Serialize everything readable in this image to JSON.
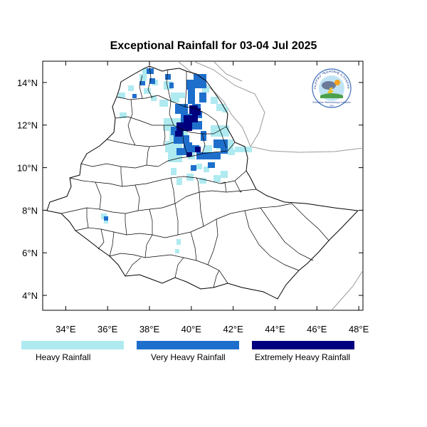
{
  "title": "Exceptional Rainfall for 03-04 Jul 2025",
  "map": {
    "lon_range": [
      32.9,
      48.2
    ],
    "lat_range": [
      3.3,
      15.0
    ],
    "lon_ticks": [
      {
        "value": 34,
        "label": "34°E"
      },
      {
        "value": 36,
        "label": "36°E"
      },
      {
        "value": 38,
        "label": "38°E"
      },
      {
        "value": 40,
        "label": "40°E"
      },
      {
        "value": 42,
        "label": "42°E"
      },
      {
        "value": 44,
        "label": "44°E"
      },
      {
        "value": 46,
        "label": "46°E"
      },
      {
        "value": 48,
        "label": "48°E"
      }
    ],
    "lat_ticks": [
      {
        "value": 4,
        "label": "4°N"
      },
      {
        "value": 6,
        "label": "6°N"
      },
      {
        "value": 8,
        "label": "8°N"
      },
      {
        "value": 10,
        "label": "10°N"
      },
      {
        "value": 12,
        "label": "12°N"
      },
      {
        "value": 14,
        "label": "14°N"
      }
    ]
  },
  "legend": [
    {
      "key": "heavy",
      "label": "Heavy Rainfall",
      "color": "#aeeaf0"
    },
    {
      "key": "very_heavy",
      "label": "Very Heavy Rainfall",
      "color": "#1e6fcc"
    },
    {
      "key": "extreme",
      "label": "Extremely Heavy Rainfall",
      "color": "#00007e"
    }
  ],
  "logo": {
    "top_text": "የኢትዮጵያ ሚቲዎሮሎጂ ኢንስቲትዩት",
    "bottom_text": "Ethiopian Meteorology Institute",
    "badge_text": "EMI"
  }
}
